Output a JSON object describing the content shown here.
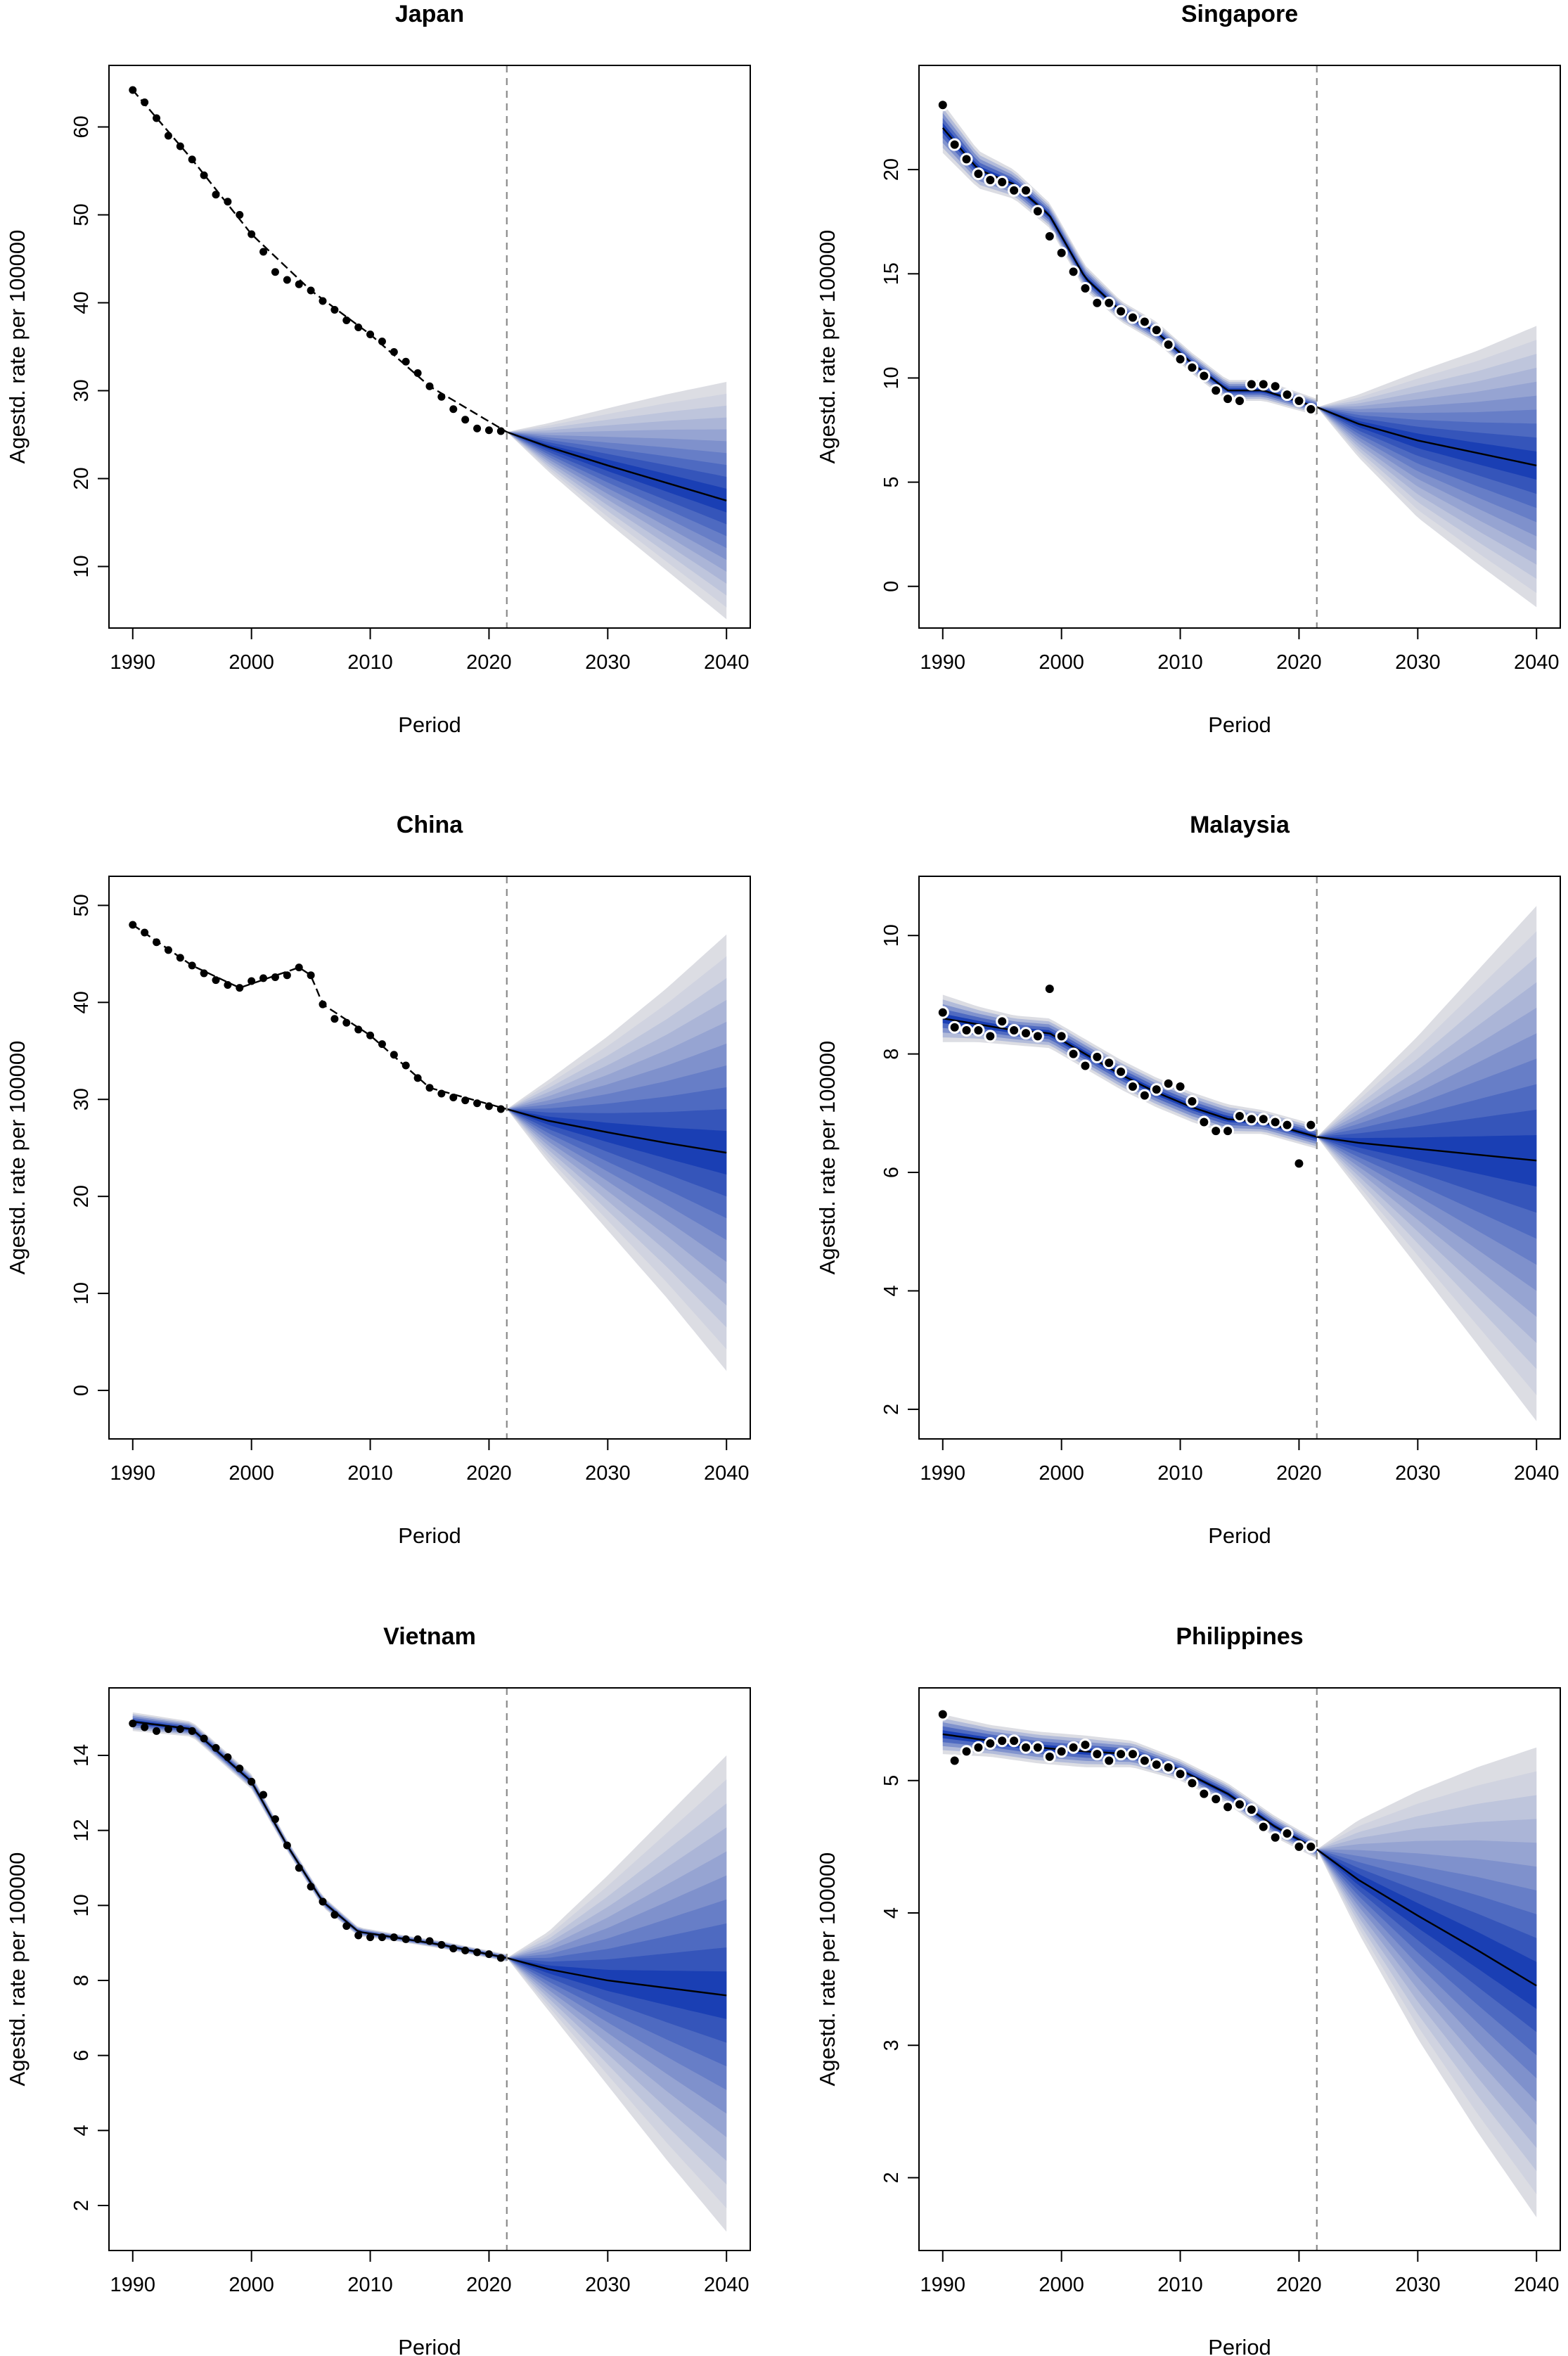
{
  "colors": {
    "fan_light": "#dcdde3",
    "fan_dark": "#1a3fb4",
    "line": "#000000",
    "dashed": "#8a8a8a",
    "point": "#000000"
  },
  "chart_data": [
    {
      "type": "line",
      "title": "Japan",
      "xlabel": "Period",
      "ylabel": "Agestd. rate per 100000",
      "xlim": [
        1988,
        2042
      ],
      "ylim": [
        3,
        67
      ],
      "xticks": [
        1990,
        2000,
        2010,
        2020,
        2030,
        2040
      ],
      "yticks": [
        10,
        20,
        30,
        40,
        50,
        60
      ],
      "cut_year": 2021.5,
      "points_style": "small",
      "observed_x": [
        1990,
        1991,
        1992,
        1993,
        1994,
        1995,
        1996,
        1997,
        1998,
        1999,
        2000,
        2001,
        2002,
        2003,
        2004,
        2005,
        2006,
        2007,
        2008,
        2009,
        2010,
        2011,
        2012,
        2013,
        2014,
        2015,
        2016,
        2017,
        2018,
        2019,
        2020,
        2021
      ],
      "observed_y": [
        64.2,
        62.8,
        61.0,
        59.0,
        57.8,
        56.3,
        54.5,
        52.3,
        51.5,
        50.0,
        47.8,
        45.8,
        43.5,
        42.6,
        42.1,
        41.4,
        40.2,
        39.2,
        38.0,
        37.2,
        36.4,
        35.6,
        34.4,
        33.3,
        32.0,
        30.5,
        29.3,
        27.9,
        26.7,
        25.7,
        25.5,
        25.4
      ],
      "fit_x": [
        1990,
        1995,
        2000,
        2005,
        2010,
        2015,
        2021.5
      ],
      "fit_y": [
        64.2,
        56.3,
        47.8,
        41.4,
        36.4,
        30.5,
        25.3
      ],
      "forecast_x": [
        2021.5,
        2025,
        2030,
        2035,
        2040
      ],
      "forecast_mean": [
        25.3,
        23.6,
        21.5,
        19.5,
        17.5
      ],
      "forecast_upper": [
        25.3,
        26.3,
        28.0,
        29.6,
        31.0
      ],
      "forecast_lower": [
        25.3,
        20.8,
        15.0,
        9.5,
        4.0
      ]
    },
    {
      "type": "line",
      "title": "Singapore",
      "xlabel": "Period",
      "ylabel": "Agestd. rate per 100000",
      "xlim": [
        1988,
        2042
      ],
      "ylim": [
        -2,
        25
      ],
      "xticks": [
        1990,
        2000,
        2010,
        2020,
        2030,
        2040
      ],
      "yticks": [
        0,
        5,
        10,
        15,
        20
      ],
      "cut_year": 2021.5,
      "points_style": "large",
      "observed_x": [
        1990,
        1991,
        1992,
        1993,
        1994,
        1995,
        1996,
        1997,
        1998,
        1999,
        2000,
        2001,
        2002,
        2003,
        2004,
        2005,
        2006,
        2007,
        2008,
        2009,
        2010,
        2011,
        2012,
        2013,
        2014,
        2015,
        2016,
        2017,
        2018,
        2019,
        2020,
        2021
      ],
      "observed_y": [
        23.1,
        21.2,
        20.5,
        19.8,
        19.5,
        19.4,
        19.0,
        19.0,
        18.0,
        16.8,
        16.0,
        15.1,
        14.3,
        13.6,
        13.6,
        13.2,
        12.9,
        12.7,
        12.3,
        11.6,
        10.9,
        10.5,
        10.1,
        9.4,
        9.0,
        8.9,
        9.7,
        9.7,
        9.6,
        9.2,
        8.9,
        8.5
      ],
      "fit_x": [
        1990,
        1993,
        1996,
        1999,
        2002,
        2005,
        2008,
        2011,
        2014,
        2017,
        2021.5
      ],
      "fit_y": [
        22.0,
        20.0,
        19.3,
        17.8,
        14.8,
        13.2,
        12.2,
        10.7,
        9.4,
        9.4,
        8.6
      ],
      "fit_band": [
        1.2,
        0.9,
        0.7,
        0.6,
        0.6,
        0.5,
        0.5,
        0.5,
        0.5,
        0.5,
        0.4
      ],
      "forecast_x": [
        2021.5,
        2025,
        2030,
        2035,
        2040
      ],
      "forecast_mean": [
        8.6,
        7.8,
        7.0,
        6.4,
        5.8
      ],
      "forecast_upper": [
        8.6,
        9.2,
        10.3,
        11.3,
        12.5
      ],
      "forecast_lower": [
        8.6,
        6.2,
        3.3,
        1.1,
        -1.0
      ]
    },
    {
      "type": "line",
      "title": "China",
      "xlabel": "Period",
      "ylabel": "Agestd. rate per 100000",
      "xlim": [
        1988,
        2042
      ],
      "ylim": [
        -5,
        53
      ],
      "xticks": [
        1990,
        2000,
        2010,
        2020,
        2030,
        2040
      ],
      "yticks": [
        0,
        10,
        20,
        30,
        40,
        50
      ],
      "cut_year": 2021.5,
      "points_style": "small",
      "observed_x": [
        1990,
        1991,
        1992,
        1993,
        1994,
        1995,
        1996,
        1997,
        1998,
        1999,
        2000,
        2001,
        2002,
        2003,
        2004,
        2005,
        2006,
        2007,
        2008,
        2009,
        2010,
        2011,
        2012,
        2013,
        2014,
        2015,
        2016,
        2017,
        2018,
        2019,
        2020,
        2021
      ],
      "observed_y": [
        48.0,
        47.2,
        46.2,
        45.4,
        44.6,
        43.8,
        43.0,
        42.3,
        41.8,
        41.5,
        42.2,
        42.5,
        42.6,
        42.8,
        43.6,
        42.8,
        39.8,
        38.3,
        37.9,
        37.2,
        36.6,
        35.7,
        34.6,
        33.5,
        32.2,
        31.2,
        30.6,
        30.2,
        29.9,
        29.6,
        29.3,
        29.0
      ],
      "fit_x": [
        1990,
        1995,
        1999,
        2004,
        2005,
        2006,
        2010,
        2015,
        2021.5
      ],
      "fit_y": [
        48.0,
        43.8,
        41.5,
        43.6,
        42.8,
        39.8,
        36.6,
        31.2,
        29.0
      ],
      "forecast_x": [
        2021.5,
        2025,
        2030,
        2035,
        2040
      ],
      "forecast_mean": [
        29.0,
        27.8,
        26.6,
        25.5,
        24.5
      ],
      "forecast_upper": [
        29.0,
        32.0,
        36.5,
        41.5,
        47.0
      ],
      "forecast_lower": [
        29.0,
        23.5,
        16.5,
        9.5,
        2.0
      ]
    },
    {
      "type": "line",
      "title": "Malaysia",
      "xlabel": "Period",
      "ylabel": "Agestd. rate per 100000",
      "xlim": [
        1988,
        2042
      ],
      "ylim": [
        1.5,
        11
      ],
      "xticks": [
        1990,
        2000,
        2010,
        2020,
        2030,
        2040
      ],
      "yticks": [
        2,
        4,
        6,
        8,
        10
      ],
      "cut_year": 2021.5,
      "points_style": "large",
      "observed_x": [
        1990,
        1991,
        1992,
        1993,
        1994,
        1995,
        1996,
        1997,
        1998,
        1999,
        2000,
        2001,
        2002,
        2003,
        2004,
        2005,
        2006,
        2007,
        2008,
        2009,
        2010,
        2011,
        2012,
        2013,
        2014,
        2015,
        2016,
        2017,
        2018,
        2019,
        2020,
        2021
      ],
      "observed_y": [
        8.7,
        8.45,
        8.4,
        8.4,
        8.3,
        8.55,
        8.4,
        8.35,
        8.3,
        9.1,
        8.3,
        8.0,
        7.8,
        7.95,
        7.85,
        7.7,
        7.45,
        7.3,
        7.4,
        7.5,
        7.45,
        7.2,
        6.85,
        6.7,
        6.7,
        6.95,
        6.9,
        6.9,
        6.85,
        6.8,
        6.15,
        6.8
      ],
      "fit_x": [
        1990,
        1993,
        1996,
        1999,
        2002,
        2005,
        2008,
        2011,
        2014,
        2017,
        2021.5
      ],
      "fit_y": [
        8.6,
        8.5,
        8.4,
        8.35,
        8.0,
        7.65,
        7.35,
        7.1,
        6.9,
        6.85,
        6.6
      ],
      "fit_band": [
        0.4,
        0.3,
        0.25,
        0.25,
        0.25,
        0.25,
        0.25,
        0.25,
        0.25,
        0.2,
        0.2
      ],
      "forecast_x": [
        2021.5,
        2025,
        2030,
        2035,
        2040
      ],
      "forecast_mean": [
        6.6,
        6.5,
        6.4,
        6.3,
        6.2
      ],
      "forecast_upper": [
        6.6,
        7.3,
        8.3,
        9.4,
        10.5
      ],
      "forecast_lower": [
        6.6,
        5.7,
        4.4,
        3.1,
        1.8
      ]
    },
    {
      "type": "line",
      "title": "Vietnam",
      "xlabel": "Period",
      "ylabel": "Agestd. rate per 100000",
      "xlim": [
        1988,
        2042
      ],
      "ylim": [
        0.8,
        15.8
      ],
      "xticks": [
        1990,
        2000,
        2010,
        2020,
        2030,
        2040
      ],
      "yticks": [
        2,
        4,
        6,
        8,
        10,
        12,
        14
      ],
      "cut_year": 2021.5,
      "points_style": "small",
      "observed_x": [
        1990,
        1991,
        1992,
        1993,
        1994,
        1995,
        1996,
        1997,
        1998,
        1999,
        2000,
        2001,
        2002,
        2003,
        2004,
        2005,
        2006,
        2007,
        2008,
        2009,
        2010,
        2011,
        2012,
        2013,
        2014,
        2015,
        2016,
        2017,
        2018,
        2019,
        2020,
        2021
      ],
      "observed_y": [
        14.85,
        14.75,
        14.65,
        14.7,
        14.7,
        14.65,
        14.45,
        14.2,
        13.95,
        13.65,
        13.3,
        12.95,
        12.3,
        11.6,
        11.0,
        10.5,
        10.1,
        9.75,
        9.45,
        9.2,
        9.15,
        9.15,
        9.15,
        9.1,
        9.1,
        9.05,
        8.95,
        8.85,
        8.8,
        8.75,
        8.7,
        8.6
      ],
      "fit_x": [
        1990,
        1995,
        2000,
        2003,
        2006,
        2009,
        2012,
        2016,
        2021.5
      ],
      "fit_y": [
        14.9,
        14.7,
        13.3,
        11.6,
        10.1,
        9.3,
        9.15,
        8.95,
        8.6
      ],
      "fit_band": [
        0.25,
        0.2,
        0.2,
        0.15,
        0.15,
        0.12,
        0.1,
        0.1,
        0.1
      ],
      "forecast_x": [
        2021.5,
        2025,
        2030,
        2035,
        2040
      ],
      "forecast_mean": [
        8.6,
        8.3,
        8.0,
        7.8,
        7.6
      ],
      "forecast_upper": [
        8.6,
        9.3,
        10.8,
        12.4,
        14.0
      ],
      "forecast_lower": [
        8.6,
        7.2,
        5.2,
        3.2,
        1.3
      ]
    },
    {
      "type": "line",
      "title": "Philippines",
      "xlabel": "Period",
      "ylabel": "Agestd. rate per 100000",
      "xlim": [
        1988,
        2042
      ],
      "ylim": [
        1.45,
        5.7
      ],
      "xticks": [
        1990,
        2000,
        2010,
        2020,
        2030,
        2040
      ],
      "yticks": [
        2,
        3,
        4,
        5
      ],
      "cut_year": 2021.5,
      "points_style": "large",
      "observed_x": [
        1990,
        1991,
        1992,
        1993,
        1994,
        1995,
        1996,
        1997,
        1998,
        1999,
        2000,
        2001,
        2002,
        2003,
        2004,
        2005,
        2006,
        2007,
        2008,
        2009,
        2010,
        2011,
        2012,
        2013,
        2014,
        2015,
        2016,
        2017,
        2018,
        2019,
        2020,
        2021
      ],
      "observed_y": [
        5.5,
        5.15,
        5.22,
        5.25,
        5.28,
        5.3,
        5.3,
        5.25,
        5.25,
        5.18,
        5.22,
        5.25,
        5.27,
        5.2,
        5.15,
        5.2,
        5.2,
        5.15,
        5.12,
        5.1,
        5.05,
        4.98,
        4.9,
        4.86,
        4.8,
        4.82,
        4.78,
        4.65,
        4.57,
        4.6,
        4.5,
        4.5
      ],
      "fit_x": [
        1990,
        1994,
        1998,
        2002,
        2006,
        2010,
        2014,
        2018,
        2021.5
      ],
      "fit_y": [
        5.35,
        5.3,
        5.25,
        5.22,
        5.2,
        5.08,
        4.9,
        4.65,
        4.48
      ],
      "fit_band": [
        0.15,
        0.12,
        0.12,
        0.12,
        0.1,
        0.08,
        0.08,
        0.08,
        0.07
      ],
      "forecast_x": [
        2021.5,
        2025,
        2030,
        2035,
        2040
      ],
      "forecast_mean": [
        4.48,
        4.25,
        3.98,
        3.72,
        3.45
      ],
      "forecast_upper": [
        4.48,
        4.7,
        4.92,
        5.1,
        5.25
      ],
      "forecast_lower": [
        4.48,
        3.85,
        3.05,
        2.35,
        1.7
      ]
    }
  ]
}
